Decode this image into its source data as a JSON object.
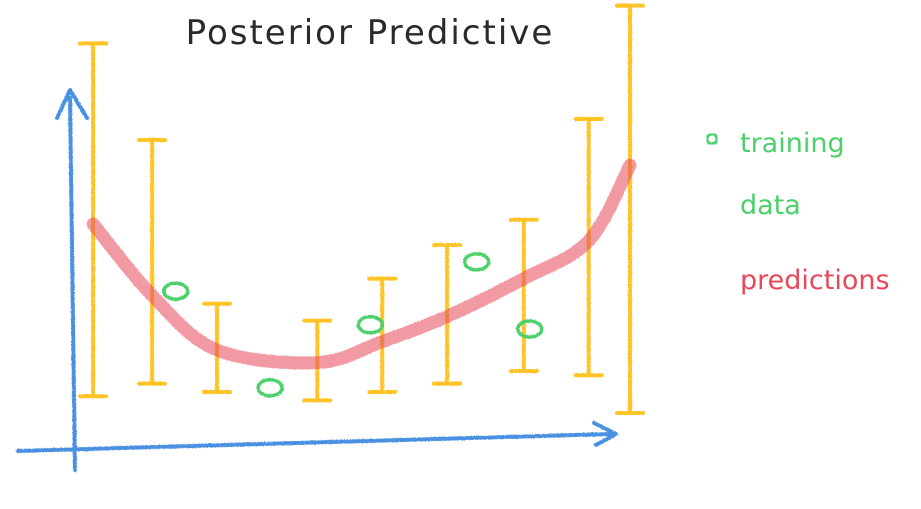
{
  "chart_data": {
    "type": "scatter",
    "title": "Posterior Predictive",
    "xlabel": "",
    "ylabel": "",
    "grid": false,
    "legend_placement": "right",
    "legend": [
      {
        "key": "training",
        "label_lines": [
          "training",
          "data"
        ],
        "marker": "circle"
      },
      {
        "key": "predictions",
        "label_lines": [
          "predictions"
        ],
        "marker": "line"
      }
    ],
    "xlim": [
      0,
      10
    ],
    "ylim": [
      0,
      10
    ],
    "series": [
      {
        "key": "training",
        "points": [
          {
            "x": 2.3,
            "y": 3.9
          },
          {
            "x": 3.9,
            "y": 1.6
          },
          {
            "x": 5.6,
            "y": 3.1
          },
          {
            "x": 7.4,
            "y": 4.6
          },
          {
            "x": 8.3,
            "y": 3.0
          }
        ]
      },
      {
        "key": "predictions",
        "points": [
          {
            "x": 0.9,
            "y": 5.5,
            "lo": 1.4,
            "hi": 9.8
          },
          {
            "x": 1.9,
            "y": 3.8,
            "lo": 1.7,
            "hi": 7.5
          },
          {
            "x": 3.0,
            "y": 2.5,
            "lo": 1.5,
            "hi": 3.6
          },
          {
            "x": 4.7,
            "y": 2.2,
            "lo": 1.3,
            "hi": 3.2
          },
          {
            "x": 5.8,
            "y": 2.7,
            "lo": 1.5,
            "hi": 4.2
          },
          {
            "x": 6.9,
            "y": 3.3,
            "lo": 1.7,
            "hi": 5.0
          },
          {
            "x": 8.2,
            "y": 4.2,
            "lo": 2.0,
            "hi": 5.6
          },
          {
            "x": 9.3,
            "y": 5.1,
            "lo": 1.9,
            "hi": 8.0
          },
          {
            "x": 10.0,
            "y": 6.9,
            "lo": 1.0,
            "hi": 10.7
          }
        ]
      }
    ]
  },
  "colors": {
    "axis": "#4a90e2",
    "training": "#4cd06a",
    "predictions": "#e8485a",
    "error_bars": "#ffc328",
    "title": "#2a2a2a"
  }
}
